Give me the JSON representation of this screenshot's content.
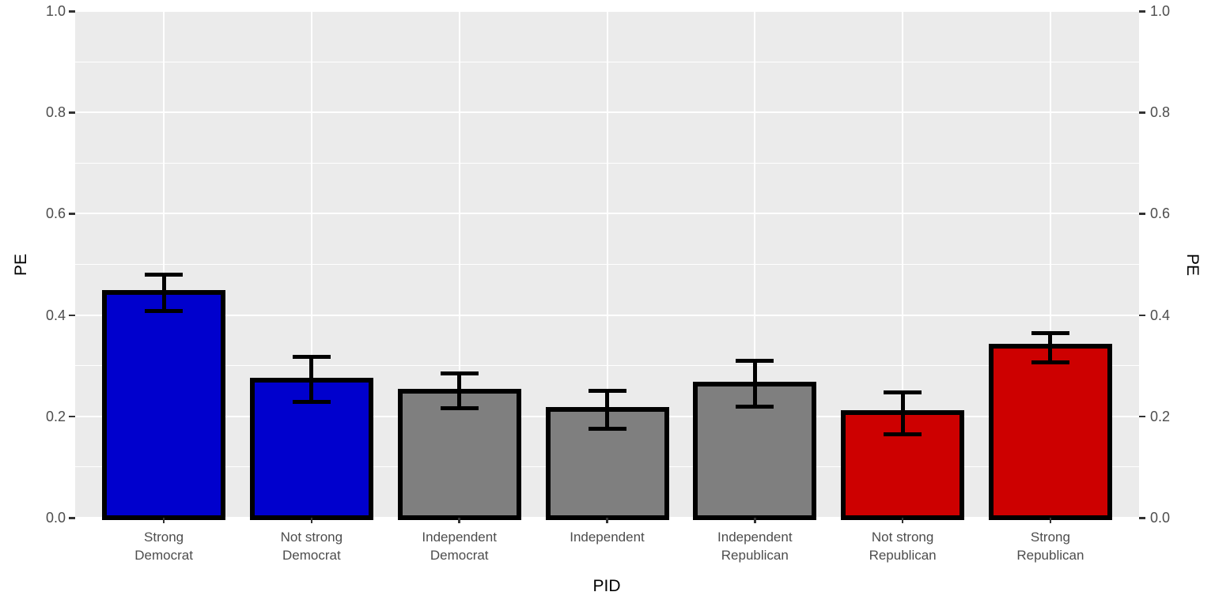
{
  "chart_data": {
    "type": "bar",
    "title": "",
    "xlabel": "PID",
    "ylabel_left": "PE",
    "ylabel_right": "PE",
    "ylim": [
      0.0,
      1.0
    ],
    "grid": true,
    "y_major_ticks": [
      0.0,
      0.2,
      0.4,
      0.6,
      0.8,
      1.0
    ],
    "y_tick_labels": [
      "0.0",
      "0.2",
      "0.4",
      "0.6",
      "0.8",
      "1.0"
    ],
    "y_minor_ticks": [
      0.1,
      0.3,
      0.5,
      0.7,
      0.9
    ],
    "categories": [
      "Strong\nDemocrat",
      "Not strong\nDemocrat",
      "Independent\nDemocrat",
      "Independent",
      "Independent\nRepublican",
      "Not strong\nRepublican",
      "Strong\nRepublican"
    ],
    "values": [
      0.445,
      0.272,
      0.25,
      0.213,
      0.263,
      0.207,
      0.338
    ],
    "error_low": [
      0.408,
      0.228,
      0.216,
      0.176,
      0.219,
      0.165,
      0.306
    ],
    "error_high": [
      0.48,
      0.317,
      0.285,
      0.25,
      0.309,
      0.248,
      0.365
    ],
    "bar_colors": [
      "#0000CD",
      "#0000CD",
      "#7F7F7F",
      "#7F7F7F",
      "#7F7F7F",
      "#CD0000",
      "#CD0000"
    ],
    "colors": {
      "panel_background": "#EBEBEB",
      "gridline": "#FFFFFF",
      "bar_outline": "#000000",
      "error_bar": "#000000",
      "tick_label_text": "#4D4D4D",
      "axis_title_text": "#000000",
      "tick_mark": "#333333",
      "figure_background": "#FFFFFF"
    },
    "legend": null
  }
}
